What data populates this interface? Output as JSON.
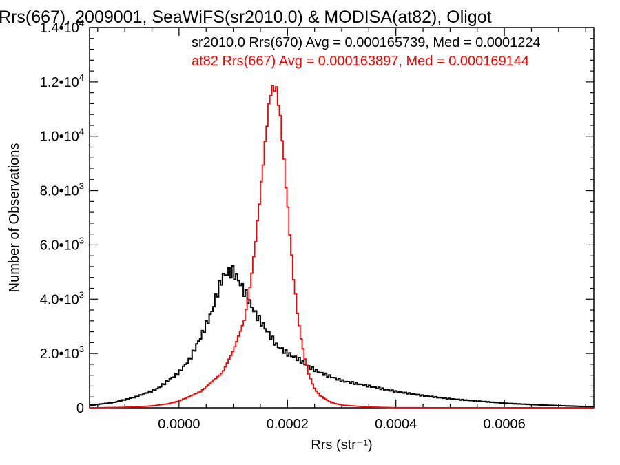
{
  "chart_data": {
    "type": "line",
    "title": "Rrs(667), 2009001, SeaWiFS(sr2010.0) & MODISA(at82), Oligot",
    "xlabel": "Rrs (str⁻¹)",
    "ylabel": "Number of Observations",
    "xlim": [
      -0.000165,
      0.000765
    ],
    "ylim": [
      0,
      14000
    ],
    "xticks": [
      0.0,
      0.0002,
      0.0004,
      0.0006
    ],
    "xtick_labels": [
      "0.0000",
      "0.0002",
      "0.0004",
      "0.0006"
    ],
    "yticks": [
      0,
      2000,
      4000,
      6000,
      8000,
      10000,
      12000,
      14000
    ],
    "ytick_labels": [
      {
        "mant": "0",
        "exp": ""
      },
      {
        "mant": "2.0•10",
        "exp": "3"
      },
      {
        "mant": "4.0•10",
        "exp": "3"
      },
      {
        "mant": "6.0•10",
        "exp": "3"
      },
      {
        "mant": "8.0•10",
        "exp": "3"
      },
      {
        "mant": "1.0•10",
        "exp": "4"
      },
      {
        "mant": "1.2•10",
        "exp": "4"
      },
      {
        "mant": "1.4•10",
        "exp": "4"
      }
    ],
    "legend_position": "top-right",
    "series": [
      {
        "name": "sr2010.0 Rrs(670) Avg = 0.000165739, Med = 0.0001224",
        "color": "#000000",
        "style": "histogram-step",
        "x": [
          -0.00016,
          -0.00012,
          -8e-05,
          -4e-05,
          -2e-05,
          0.0,
          2e-05,
          4e-05,
          6e-05,
          7e-05,
          8e-05,
          9e-05,
          0.0001,
          0.00011,
          0.00012,
          0.00013,
          0.00014,
          0.00015,
          0.00016,
          0.00017,
          0.00018,
          0.0002,
          0.00022,
          0.00024,
          0.00026,
          0.0003,
          0.00035,
          0.0004,
          0.00045,
          0.0005,
          0.00055,
          0.0006,
          0.00065,
          0.0007,
          0.00076
        ],
        "y": [
          100,
          200,
          400,
          700,
          1000,
          1300,
          1800,
          2600,
          3500,
          4200,
          4800,
          5000,
          5000,
          4700,
          4300,
          3900,
          3500,
          3200,
          2900,
          2600,
          2300,
          2000,
          1800,
          1500,
          1300,
          1000,
          800,
          600,
          450,
          330,
          250,
          170,
          120,
          80,
          40
        ]
      },
      {
        "name": "at82 Rrs(667) Avg = 0.000163897, Med = 0.000169144",
        "color": "#ff0000",
        "style": "histogram-step",
        "x": [
          -0.00016,
          -0.0001,
          -5e-05,
          -2e-05,
          0.0,
          4e-05,
          8e-05,
          0.0001,
          0.00012,
          0.00013,
          0.00014,
          0.00015,
          0.00016,
          0.000165,
          0.00017,
          0.000175,
          0.00018,
          0.000185,
          0.00019,
          0.0002,
          0.00021,
          0.00022,
          0.00023,
          0.00024,
          0.00025,
          0.00026,
          0.00028,
          0.0003,
          0.00035,
          0.0004,
          0.00076
        ],
        "y": [
          0,
          20,
          70,
          150,
          250,
          600,
          1300,
          2100,
          3200,
          4300,
          5900,
          7900,
          10000,
          11000,
          11700,
          11800,
          11700,
          11000,
          10000,
          7500,
          5000,
          3200,
          2000,
          1200,
          700,
          450,
          200,
          100,
          30,
          5,
          0
        ]
      }
    ]
  }
}
